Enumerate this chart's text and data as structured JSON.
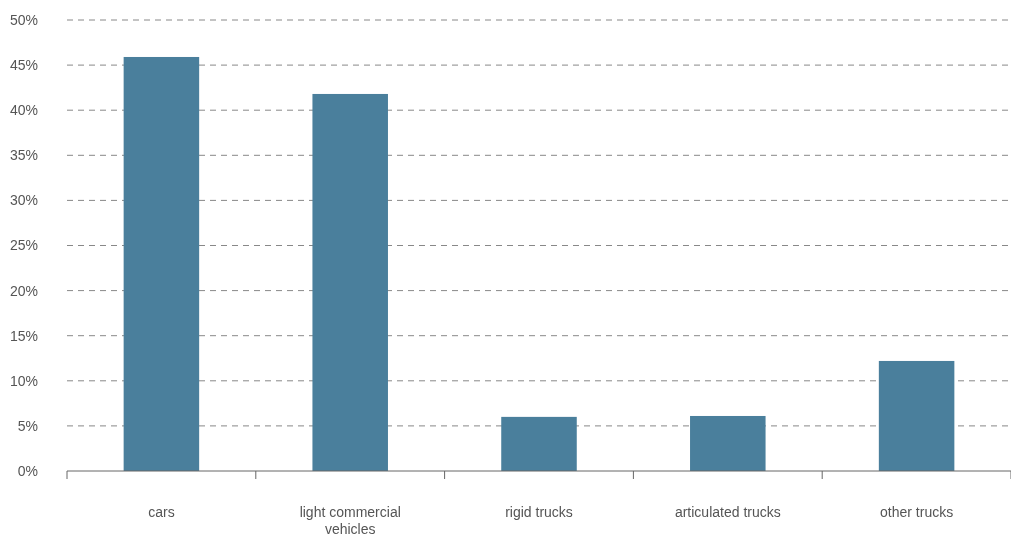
{
  "chart_data": {
    "type": "bar",
    "categories": [
      "cars",
      "light commercial vehicles",
      "rigid trucks",
      "articulated trucks",
      "other trucks"
    ],
    "values": [
      45.9,
      41.8,
      6,
      6.1,
      12.2
    ],
    "color": "#4a7f9c",
    "ylim": [
      0,
      50
    ],
    "yticks": [
      {
        "value": 0,
        "label": "0%"
      },
      {
        "value": 5,
        "label": "5%"
      },
      {
        "value": 10,
        "label": "10%"
      },
      {
        "value": 15,
        "label": "15%"
      },
      {
        "value": 20,
        "label": "20%"
      },
      {
        "value": 25,
        "label": "25%"
      },
      {
        "value": 30,
        "label": "30%"
      },
      {
        "value": 35,
        "label": "35%"
      },
      {
        "value": 40,
        "label": "40%"
      },
      {
        "value": 45,
        "label": "45%"
      },
      {
        "value": 50,
        "label": "50%"
      }
    ],
    "grid": "y"
  }
}
